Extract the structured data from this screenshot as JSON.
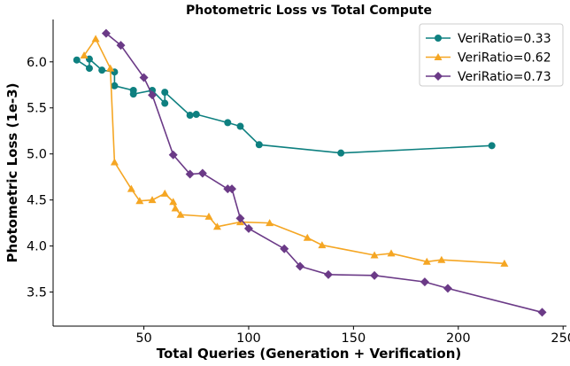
{
  "chart_data": {
    "type": "line",
    "title": "Photometric Loss vs Total Compute",
    "xlabel": "Total Queries (Generation + Verification)",
    "ylabel": "Photometric Loss (1e-3)",
    "xlim": [
      6.7,
      251.6
    ],
    "ylim": [
      3.13,
      6.46
    ],
    "xticks": [
      50,
      100,
      150,
      200,
      250
    ],
    "yticks": [
      3.5,
      4.0,
      4.5,
      5.0,
      5.5,
      6.0
    ],
    "xtick_labels": [
      "50",
      "100",
      "150",
      "200",
      "250"
    ],
    "ytick_labels": [
      "3.5",
      "4.0",
      "4.5",
      "5.0",
      "5.5",
      "6.0"
    ],
    "grid": false,
    "legend_position": "top-right",
    "series": [
      {
        "name": "VeriRatio=0.33",
        "color": "#0e8080",
        "marker": "circle",
        "x": [
          18,
          24,
          24,
          30,
          36,
          36,
          45,
          45,
          54,
          60,
          60,
          72,
          75,
          90,
          96,
          105,
          144,
          216
        ],
        "y": [
          6.02,
          5.93,
          6.03,
          5.91,
          5.89,
          5.74,
          5.69,
          5.65,
          5.69,
          5.55,
          5.67,
          5.42,
          5.43,
          5.34,
          5.3,
          5.1,
          5.01,
          5.09
        ]
      },
      {
        "name": "VeriRatio=0.62",
        "color": "#f5a623",
        "marker": "triangle",
        "x": [
          21.5,
          27,
          34,
          36,
          44,
          48,
          54,
          60,
          64,
          65,
          67.5,
          81,
          85,
          96,
          110,
          128,
          135,
          160,
          168,
          185,
          192,
          222
        ],
        "y": [
          6.07,
          6.25,
          5.93,
          4.91,
          4.62,
          4.49,
          4.5,
          4.57,
          4.48,
          4.41,
          4.34,
          4.32,
          4.21,
          4.26,
          4.25,
          4.09,
          4.01,
          3.9,
          3.92,
          3.83,
          3.85,
          3.81
        ]
      },
      {
        "name": "VeriRatio=0.73",
        "color": "#6b3a87",
        "marker": "diamond",
        "x": [
          32,
          39,
          50,
          54,
          64,
          72,
          78,
          90,
          92,
          96,
          100,
          117,
          124.5,
          138,
          160,
          184,
          195,
          240
        ],
        "y": [
          6.31,
          6.18,
          5.83,
          5.64,
          4.99,
          4.78,
          4.79,
          4.62,
          4.62,
          4.3,
          4.19,
          3.97,
          3.78,
          3.69,
          3.68,
          3.61,
          3.54,
          3.28
        ]
      }
    ]
  }
}
